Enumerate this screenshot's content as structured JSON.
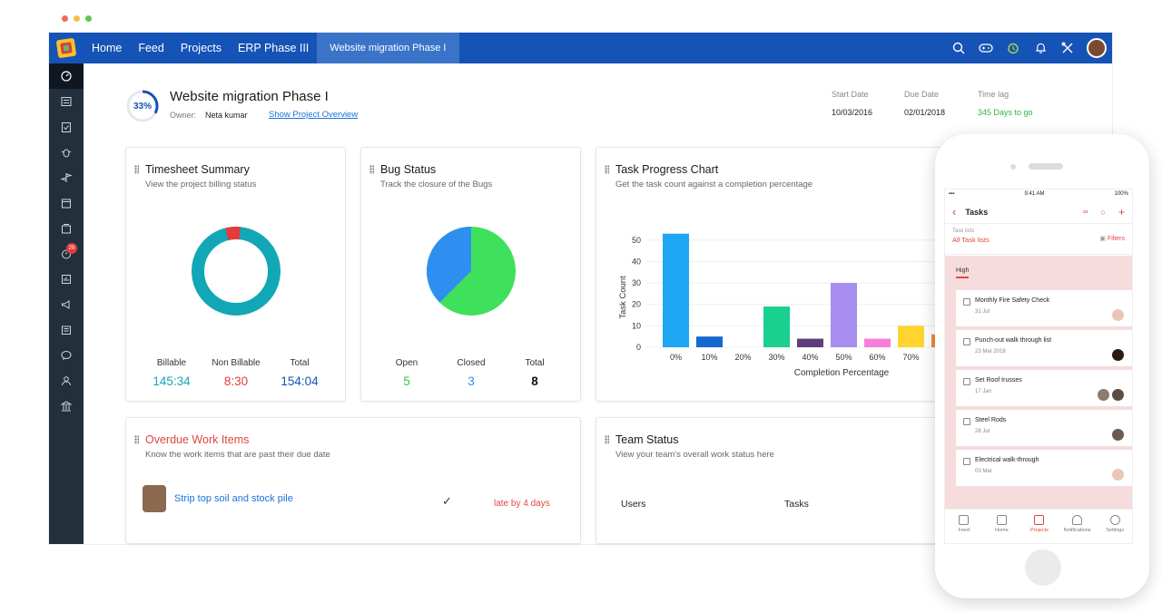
{
  "colors": {
    "nav_bg": "#1553b6",
    "accent": "#1a73d9",
    "red": "#e53b3b",
    "green": "#2ecc40",
    "teal": "#12a7b6"
  },
  "nav": {
    "items": [
      "Home",
      "Feed",
      "Projects",
      "ERP Phase III"
    ],
    "active": "Website migration Phase I"
  },
  "top_icons": [
    "search-icon",
    "gamepad-icon",
    "alarm-icon",
    "bell-icon",
    "tools-icon",
    "user-avatar"
  ],
  "sidebar": {
    "icons": [
      "dashboard-icon",
      "feed-icon",
      "tasks-icon",
      "bugs-icon",
      "milestones-icon",
      "calendar-icon",
      "documents-icon",
      "timesheet-icon",
      "reports-icon",
      "announcements-icon",
      "pages-icon",
      "chat-icon",
      "users-icon",
      "bank-icon"
    ],
    "badge": "29"
  },
  "header": {
    "progress_label": "33%",
    "progress": 0.33,
    "title": "Website migration Phase I",
    "owner_label": "Owner:",
    "owner_name": "Neta kumar",
    "overview_link": "Show Project Overview",
    "start_label": "Start Date",
    "start_value": "10/03/2016",
    "due_label": "Due Date",
    "due_value": "02/01/2018",
    "lag_label": "Time lag",
    "lag_value": "345 Days to go"
  },
  "timesheet": {
    "title": "Timesheet Summary",
    "subtitle": "View the project billing status",
    "billable_label": "Billable",
    "billable": "145:34",
    "nonbillable_label": "Non Billable",
    "nonbillable": "8:30",
    "total_label": "Total",
    "total": "154:04"
  },
  "bugs": {
    "title": "Bug Status",
    "subtitle": "Track the closure of the Bugs",
    "open_label": "Open",
    "open": "5",
    "closed_label": "Closed",
    "closed": "3",
    "total_label": "Total",
    "total": "8"
  },
  "task_chart": {
    "title": "Task Progress Chart",
    "subtitle": "Get the task count against a completion percentage"
  },
  "chart_data": {
    "type": "bar",
    "categories": [
      "0%",
      "10%",
      "20%",
      "30%",
      "40%",
      "50%",
      "60%",
      "70%",
      "80%"
    ],
    "values": [
      53,
      5,
      0,
      19,
      4,
      30,
      4,
      10,
      6
    ],
    "colors": [
      "#1ea7f3",
      "#1468d1",
      "#8fb8e8",
      "#19d08e",
      "#5d3d7a",
      "#a78ef0",
      "#f77fd9",
      "#ffd42f",
      "#f08a47"
    ],
    "xlabel": "Completion Percentage",
    "ylabel": "Task Count",
    "yticks": [
      0,
      10,
      20,
      30,
      40,
      50
    ],
    "ylim": [
      0,
      55
    ],
    "visible_tick_labels": [
      "0%",
      "10%",
      "20%",
      "30%",
      "40%",
      "50%",
      "60%",
      "70%"
    ],
    "grid": true
  },
  "overdue": {
    "title": "Overdue Work Items",
    "subtitle": "Know the work items that are past their due date",
    "item": "Strip top soil and stock pile",
    "late": "late by 4 days"
  },
  "team": {
    "title": "Team Status",
    "subtitle": "View your team's overall work status here",
    "col_users": "Users",
    "col_tasks": "Tasks"
  },
  "mobile": {
    "time": "9:41 AM",
    "battery": "100%",
    "header": "Tasks",
    "tasklists_label": "Task lists",
    "tasklists_value": "All Task lists",
    "filters": "Filters",
    "tab": "High",
    "tasks": [
      {
        "name": "Monthly Fire Safety Check",
        "date": "31 Jul"
      },
      {
        "name": "Punch-out walk through list",
        "date": "23 Mar 2018"
      },
      {
        "name": "Set Roof trusses",
        "date": "17 Jan"
      },
      {
        "name": "Steel Rods",
        "date": "28 Jul"
      },
      {
        "name": "Electrical walk-through",
        "date": "03 Mar"
      }
    ],
    "bottom_nav": [
      "Feed",
      "Home",
      "Projects",
      "Notifications",
      "Settings"
    ]
  }
}
